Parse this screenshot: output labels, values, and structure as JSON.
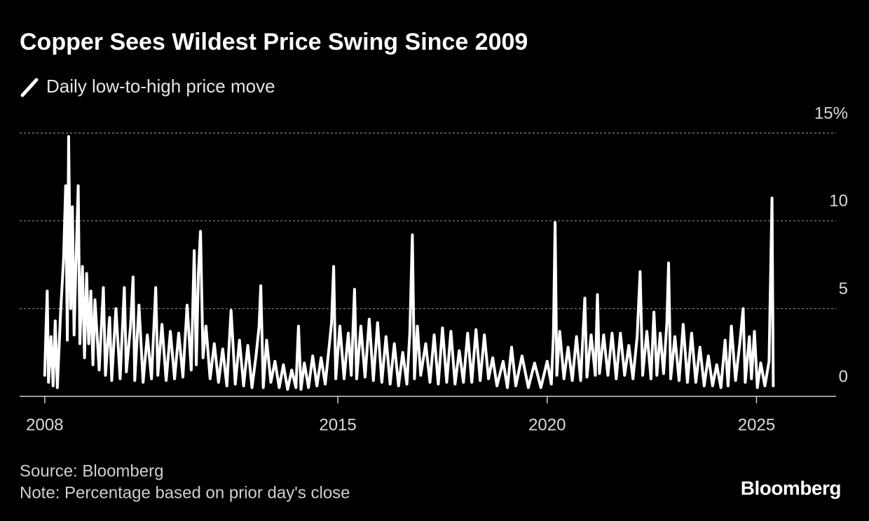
{
  "chart_data": {
    "type": "line",
    "title": "Copper Sees Wildest Price Swing Since 2009",
    "source": "Source: Bloomberg",
    "note": "Note: Percentage based on prior day's close",
    "brand": "Bloomberg",
    "xlim": [
      2007.4,
      2026.9
    ],
    "xticks": [
      2008,
      2015,
      2020,
      2025
    ],
    "ylim": [
      0,
      15
    ],
    "yticks": [
      0,
      5,
      10,
      {
        "value": 15,
        "label": "15%"
      }
    ],
    "grid": true,
    "x": [
      2008.0,
      2008.03,
      2008.06,
      2008.09,
      2008.15,
      2008.2,
      2008.25,
      2008.3,
      2008.38,
      2008.45,
      2008.5,
      2008.54,
      2008.57,
      2008.62,
      2008.66,
      2008.7,
      2008.75,
      2008.8,
      2008.84,
      2008.9,
      2008.95,
      2009.0,
      2009.05,
      2009.1,
      2009.15,
      2009.2,
      2009.3,
      2009.4,
      2009.45,
      2009.55,
      2009.6,
      2009.7,
      2009.8,
      2009.9,
      2009.95,
      2010.05,
      2010.11,
      2010.15,
      2010.25,
      2010.35,
      2010.45,
      2010.55,
      2010.65,
      2010.7,
      2010.8,
      2010.9,
      2011.0,
      2011.1,
      2011.2,
      2011.3,
      2011.4,
      2011.5,
      2011.57,
      2011.62,
      2011.67,
      2011.72,
      2011.78,
      2011.85,
      2011.95,
      2012.05,
      2012.15,
      2012.25,
      2012.35,
      2012.45,
      2012.55,
      2012.65,
      2012.75,
      2012.85,
      2012.95,
      2013.05,
      2013.12,
      2013.16,
      2013.22,
      2013.3,
      2013.4,
      2013.5,
      2013.6,
      2013.7,
      2013.8,
      2013.9,
      2014.0,
      2014.06,
      2014.12,
      2014.2,
      2014.3,
      2014.4,
      2014.5,
      2014.6,
      2014.7,
      2014.8,
      2014.85,
      2014.9,
      2014.95,
      2015.05,
      2015.15,
      2015.25,
      2015.32,
      2015.4,
      2015.45,
      2015.55,
      2015.65,
      2015.75,
      2015.85,
      2015.95,
      2016.05,
      2016.15,
      2016.25,
      2016.35,
      2016.45,
      2016.55,
      2016.65,
      2016.72,
      2016.78,
      2016.83,
      2016.9,
      2016.98,
      2017.1,
      2017.2,
      2017.3,
      2017.4,
      2017.5,
      2017.6,
      2017.7,
      2017.8,
      2017.9,
      2018.0,
      2018.1,
      2018.2,
      2018.3,
      2018.4,
      2018.5,
      2018.6,
      2018.7,
      2018.8,
      2018.95,
      2019.05,
      2019.15,
      2019.25,
      2019.4,
      2019.55,
      2019.7,
      2019.85,
      2020.0,
      2020.1,
      2020.15,
      2020.19,
      2020.23,
      2020.3,
      2020.4,
      2020.5,
      2020.6,
      2020.7,
      2020.8,
      2020.9,
      2020.95,
      2021.05,
      2021.15,
      2021.2,
      2021.25,
      2021.35,
      2021.45,
      2021.55,
      2021.65,
      2021.75,
      2021.85,
      2021.95,
      2022.05,
      2022.15,
      2022.22,
      2022.28,
      2022.38,
      2022.48,
      2022.55,
      2022.62,
      2022.7,
      2022.78,
      2022.86,
      2022.9,
      2022.95,
      2023.05,
      2023.15,
      2023.25,
      2023.35,
      2023.45,
      2023.55,
      2023.65,
      2023.75,
      2023.85,
      2023.95,
      2024.05,
      2024.15,
      2024.25,
      2024.32,
      2024.4,
      2024.5,
      2024.6,
      2024.68,
      2024.73,
      2024.83,
      2024.88,
      2024.95,
      2025.02,
      2025.1,
      2025.2,
      2025.3,
      2025.37,
      2025.4
    ],
    "series": [
      {
        "name": "Daily low-to-high price move",
        "color": "#ffffff",
        "values": [
          1.2,
          3.8,
          6.0,
          0.8,
          3.4,
          0.6,
          4.3,
          0.5,
          4.8,
          7.8,
          12.0,
          3.2,
          14.8,
          5.0,
          10.8,
          3.5,
          8.0,
          12.0,
          3.0,
          7.4,
          2.2,
          7.0,
          3.0,
          6.0,
          1.8,
          5.5,
          1.5,
          6.2,
          1.2,
          4.5,
          0.9,
          5.0,
          1.0,
          6.2,
          1.4,
          4.0,
          6.8,
          0.9,
          5.2,
          0.8,
          3.5,
          1.0,
          6.2,
          1.2,
          4.1,
          0.9,
          3.7,
          1.0,
          3.6,
          1.1,
          5.2,
          1.5,
          8.3,
          1.8,
          7.0,
          9.4,
          2.2,
          4.0,
          1.0,
          3.0,
          0.8,
          2.7,
          0.6,
          4.9,
          0.7,
          3.2,
          0.6,
          2.9,
          0.5,
          2.4,
          4.0,
          6.3,
          0.5,
          3.2,
          0.8,
          2.0,
          0.5,
          1.8,
          0.4,
          1.5,
          0.5,
          4.0,
          0.4,
          1.9,
          0.5,
          2.3,
          0.6,
          2.2,
          0.7,
          3.0,
          4.2,
          7.4,
          1.0,
          4.0,
          1.0,
          3.6,
          1.2,
          6.1,
          1.0,
          4.0,
          1.1,
          4.4,
          0.9,
          4.2,
          0.8,
          3.4,
          0.7,
          3.0,
          0.6,
          2.5,
          0.7,
          3.6,
          9.2,
          1.0,
          4.0,
          1.2,
          3.0,
          0.8,
          3.5,
          0.7,
          3.9,
          0.8,
          3.7,
          0.7,
          2.6,
          0.8,
          3.6,
          0.8,
          3.8,
          0.9,
          3.5,
          1.0,
          2.2,
          0.6,
          2.0,
          0.5,
          2.8,
          0.6,
          2.3,
          0.5,
          1.9,
          0.5,
          2.0,
          0.7,
          3.5,
          9.9,
          1.2,
          3.7,
          1.0,
          2.8,
          0.9,
          3.4,
          0.9,
          5.6,
          1.1,
          3.5,
          1.2,
          5.8,
          1.3,
          3.5,
          1.2,
          3.6,
          1.0,
          3.6,
          1.2,
          2.9,
          1.0,
          3.4,
          7.1,
          1.2,
          3.7,
          1.0,
          4.8,
          1.2,
          3.6,
          1.3,
          4.2,
          7.6,
          1.0,
          3.4,
          0.9,
          4.1,
          0.8,
          3.6,
          0.8,
          2.8,
          0.6,
          2.3,
          0.6,
          1.8,
          0.5,
          3.2,
          0.6,
          4.0,
          0.9,
          3.0,
          5.0,
          0.8,
          3.4,
          1.0,
          3.7,
          0.5,
          1.9,
          0.6,
          2.0,
          11.3,
          0.6
        ]
      }
    ]
  }
}
